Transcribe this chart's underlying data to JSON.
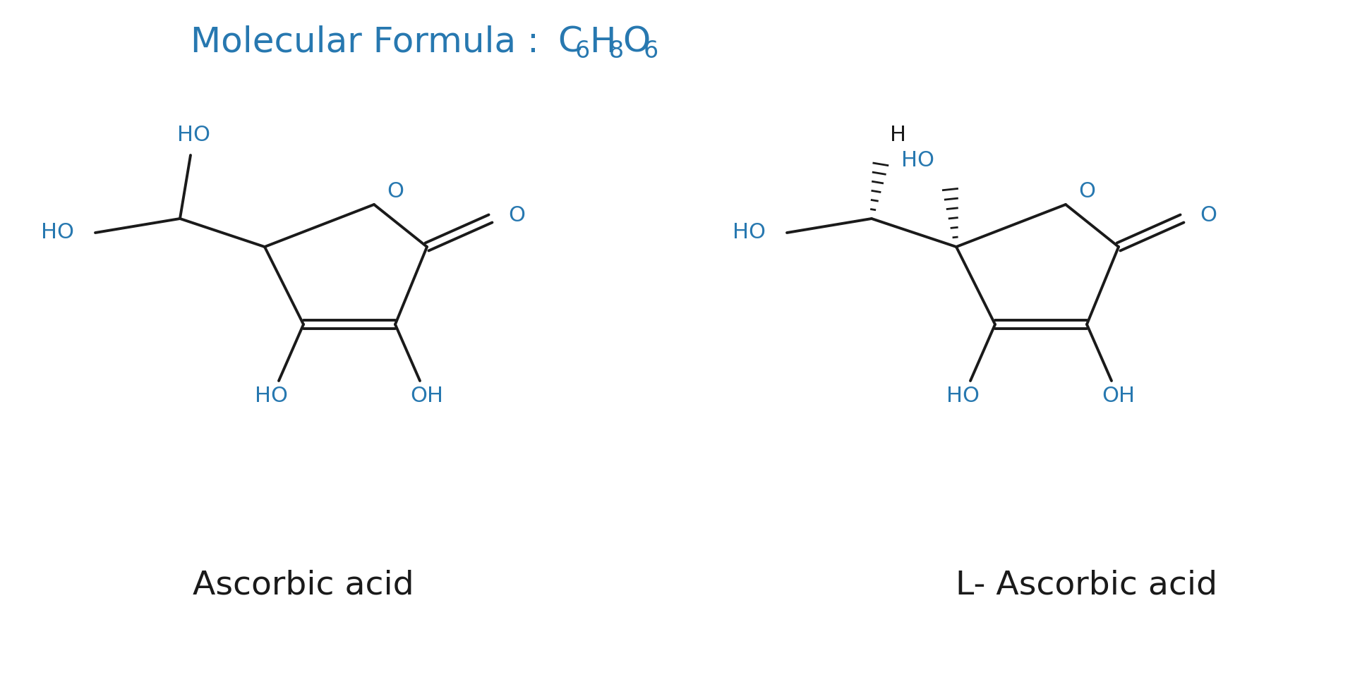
{
  "bg_color": "#ffffff",
  "bond_color": "#1a1a1a",
  "blue_color": "#2778b0",
  "black_color": "#1a1a1a",
  "label1": "Ascorbic acid",
  "label2": "L- Ascorbic acid",
  "figsize": [
    19.2,
    9.6
  ],
  "dpi": 100,
  "title_main": "Molecular Formula : ",
  "formula_parts": [
    "C",
    "6",
    "H",
    "8",
    "O",
    "6"
  ]
}
